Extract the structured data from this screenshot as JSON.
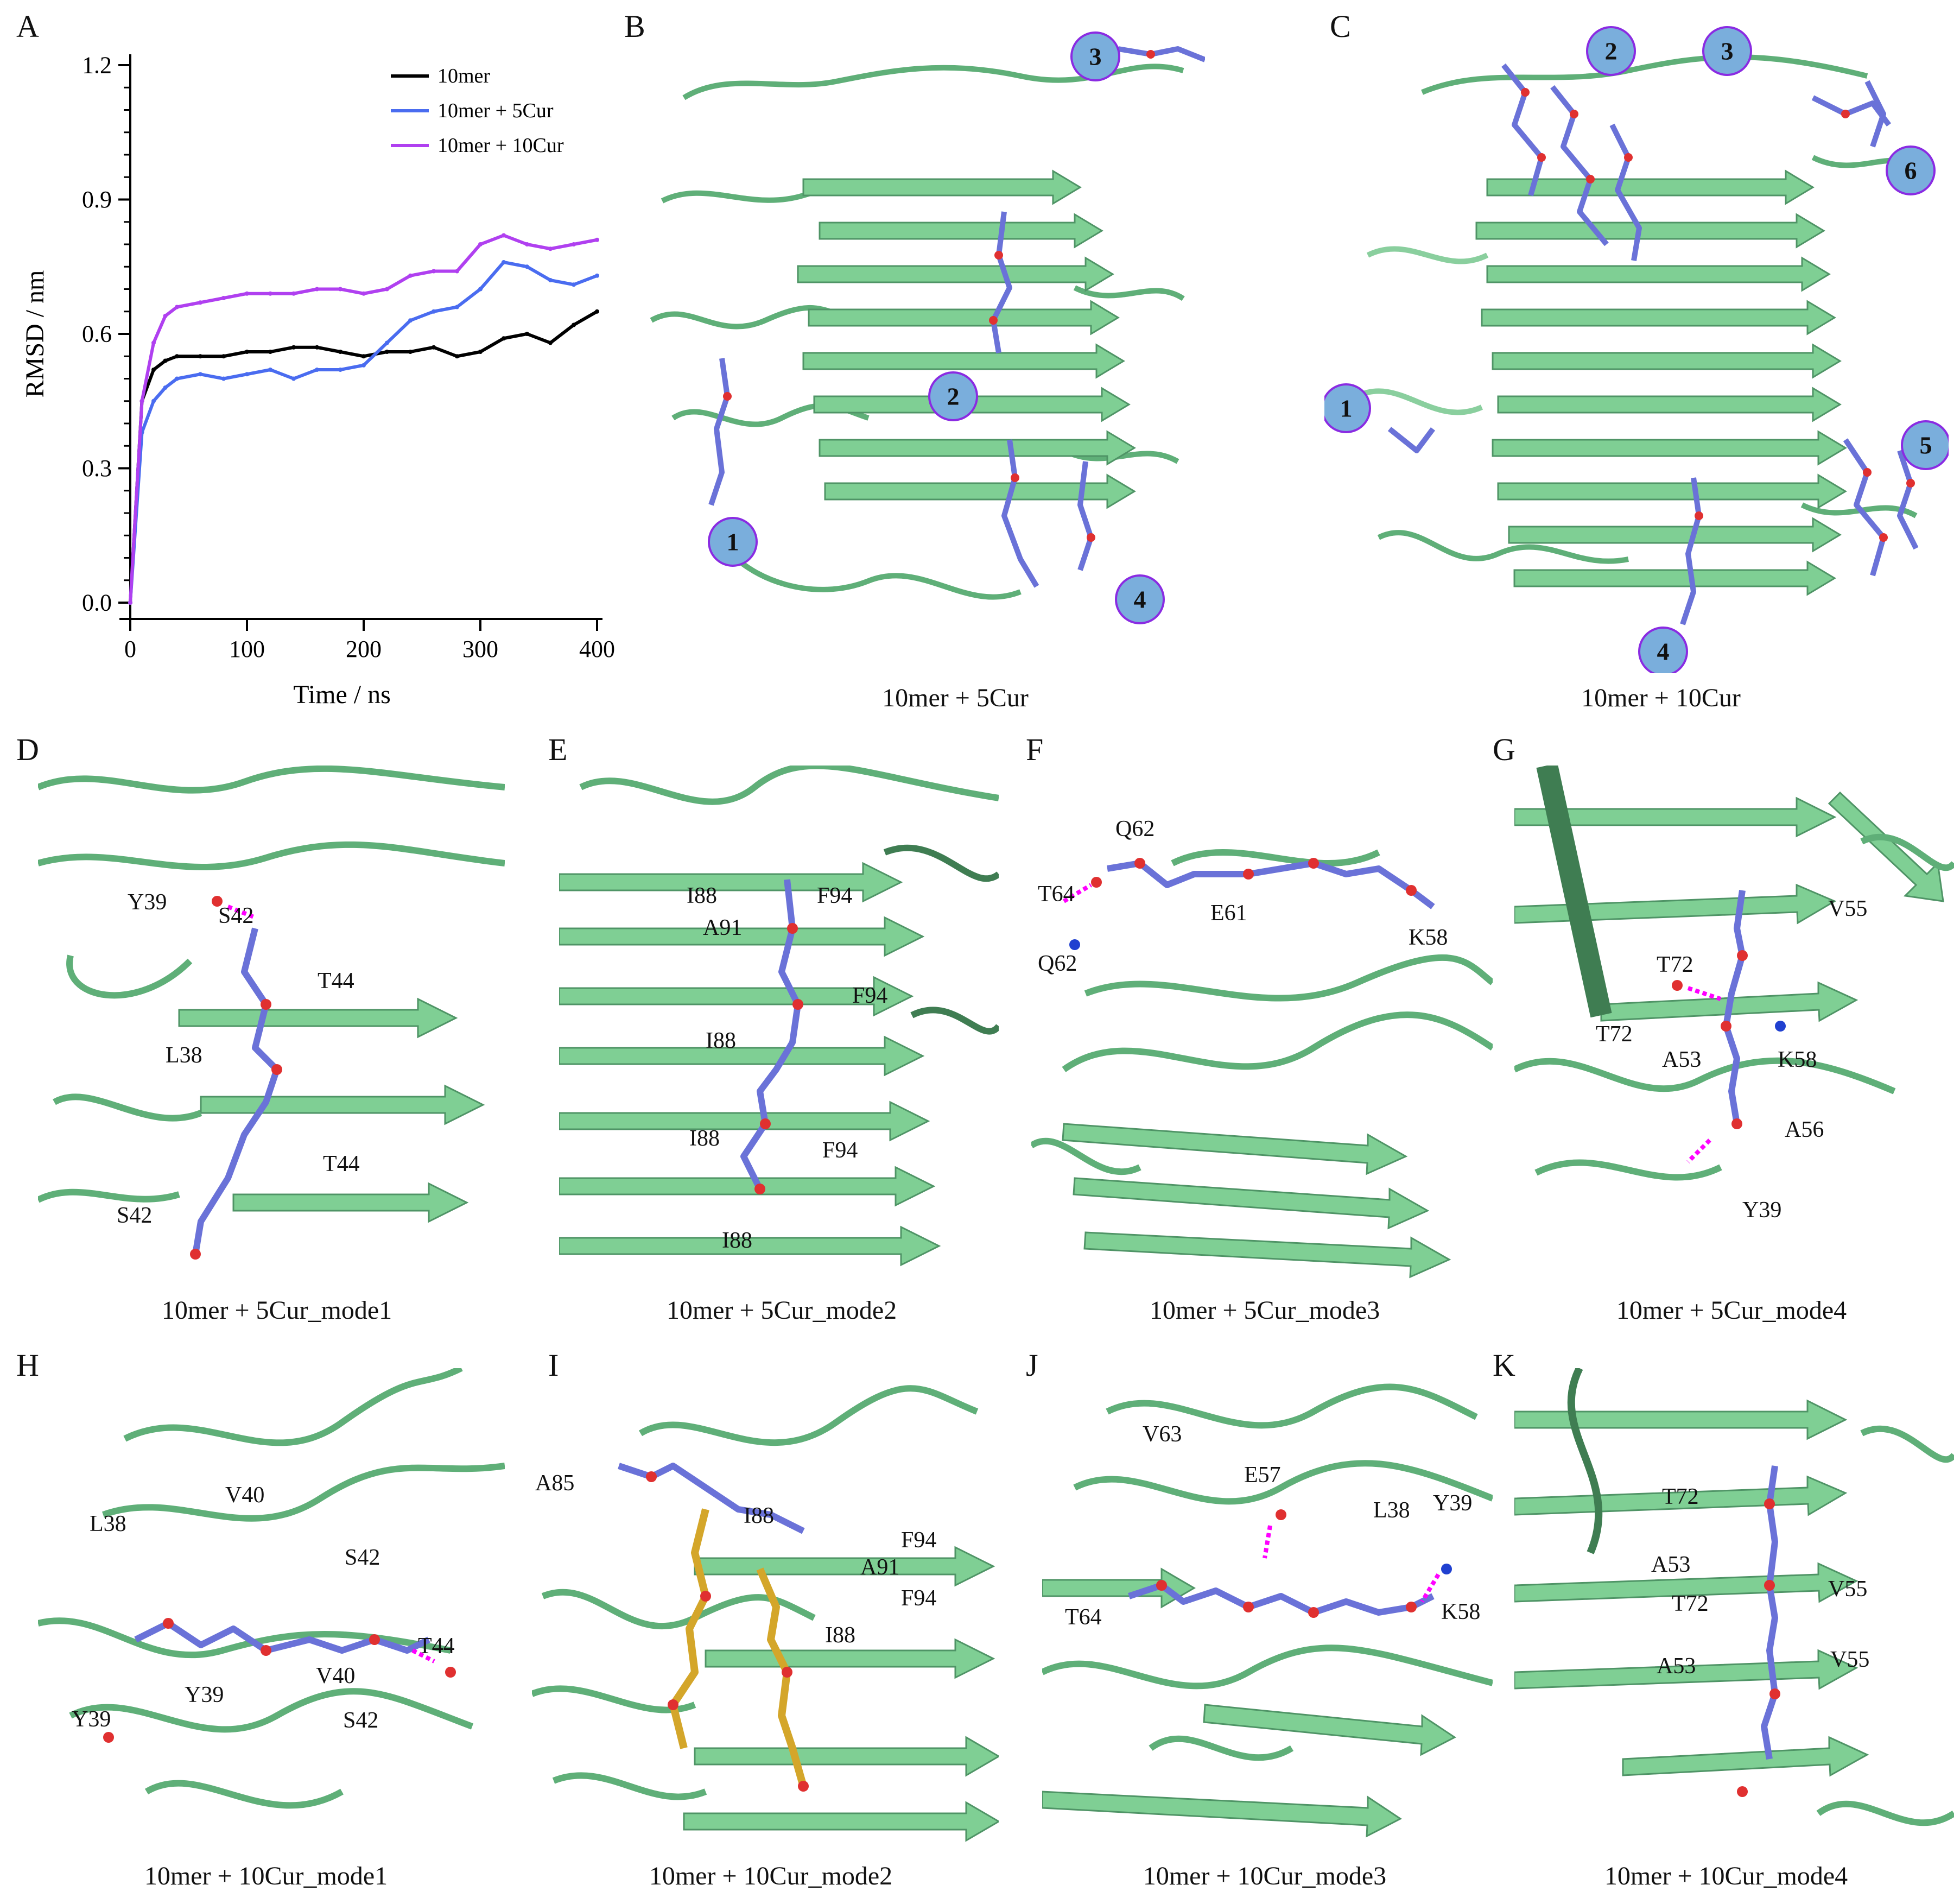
{
  "panels": {
    "A": {
      "letter": "A"
    },
    "B": {
      "letter": "B",
      "caption": "10mer + 5Cur",
      "sites": [
        "1",
        "2",
        "3",
        "4"
      ]
    },
    "C": {
      "letter": "C",
      "caption": "10mer + 10Cur",
      "sites": [
        "1",
        "2",
        "3",
        "4",
        "5",
        "6"
      ]
    },
    "D": {
      "letter": "D",
      "caption": "10mer + 5Cur_mode1",
      "residues": [
        "Y39",
        "S42",
        "T44",
        "L38",
        "T44",
        "S42"
      ]
    },
    "E": {
      "letter": "E",
      "caption": "10mer + 5Cur_mode2",
      "residues": [
        "I88",
        "F94",
        "A91",
        "F94",
        "I88",
        "I88",
        "F94",
        "I88"
      ]
    },
    "F": {
      "letter": "F",
      "caption": "10mer + 5Cur_mode3",
      "residues": [
        "Q62",
        "T64",
        "E61",
        "K58",
        "Q62"
      ]
    },
    "G": {
      "letter": "G",
      "caption": "10mer + 5Cur_mode4",
      "residues": [
        "T72",
        "V55",
        "T72",
        "A53",
        "K58",
        "A56",
        "Y39"
      ]
    },
    "H": {
      "letter": "H",
      "caption": "10mer + 10Cur_mode1",
      "residues": [
        "L38",
        "V40",
        "S42",
        "T44",
        "Y39",
        "Y39",
        "V40",
        "S42"
      ]
    },
    "I": {
      "letter": "I",
      "caption": "10mer + 10Cur_mode2",
      "residues": [
        "A85",
        "I88",
        "F94",
        "A91",
        "F94",
        "I88"
      ]
    },
    "J": {
      "letter": "J",
      "caption": "10mer + 10Cur_mode3",
      "residues": [
        "V63",
        "E57",
        "L38",
        "Y39",
        "T64",
        "K58"
      ]
    },
    "K": {
      "letter": "K",
      "caption": "10mer + 10Cur_mode4",
      "residues": [
        "T72",
        "A53",
        "T72",
        "V55",
        "A53",
        "V55"
      ]
    }
  },
  "colors": {
    "protein": "#5faf78",
    "protein_sheet": "#7fcf94",
    "protein_dark": "#3f7d52",
    "curcumin": "#6a72d8",
    "curcumin_alt": "#d4a62a",
    "oxygen": "#e03030",
    "nitrogen": "#2040d0",
    "hbond": "#ff00ff",
    "site_circle": "#7aaedc",
    "site_ring": "#8a2be2"
  },
  "chart_data": {
    "type": "line",
    "xlabel": "Time / ns",
    "ylabel": "RMSD / nm",
    "xlim": [
      0,
      400
    ],
    "ylim": [
      0,
      1.2
    ],
    "xticks": [
      "0",
      "100",
      "200",
      "300",
      "400"
    ],
    "yticks": [
      "0.0",
      "0.3",
      "0.6",
      "0.9",
      "1.2"
    ],
    "legend_position": "top-right",
    "x": [
      0,
      10,
      20,
      30,
      40,
      60,
      80,
      100,
      120,
      140,
      160,
      180,
      200,
      220,
      240,
      260,
      280,
      300,
      320,
      340,
      360,
      380,
      400
    ],
    "series": [
      {
        "name": "10mer",
        "color": "#000000",
        "values": [
          0.0,
          0.45,
          0.52,
          0.54,
          0.55,
          0.55,
          0.55,
          0.56,
          0.56,
          0.57,
          0.57,
          0.56,
          0.55,
          0.56,
          0.56,
          0.57,
          0.55,
          0.56,
          0.59,
          0.6,
          0.58,
          0.62,
          0.65
        ]
      },
      {
        "name": "10mer + 5Cur",
        "color": "#4a6cf0",
        "values": [
          0.0,
          0.38,
          0.45,
          0.48,
          0.5,
          0.51,
          0.5,
          0.51,
          0.52,
          0.5,
          0.52,
          0.52,
          0.53,
          0.58,
          0.63,
          0.65,
          0.66,
          0.7,
          0.76,
          0.75,
          0.72,
          0.71,
          0.73
        ]
      },
      {
        "name": "10mer + 10Cur",
        "color": "#b040f0",
        "values": [
          0.0,
          0.45,
          0.58,
          0.64,
          0.66,
          0.67,
          0.68,
          0.69,
          0.69,
          0.69,
          0.7,
          0.7,
          0.69,
          0.7,
          0.73,
          0.74,
          0.74,
          0.8,
          0.82,
          0.8,
          0.79,
          0.8,
          0.81
        ]
      }
    ]
  }
}
